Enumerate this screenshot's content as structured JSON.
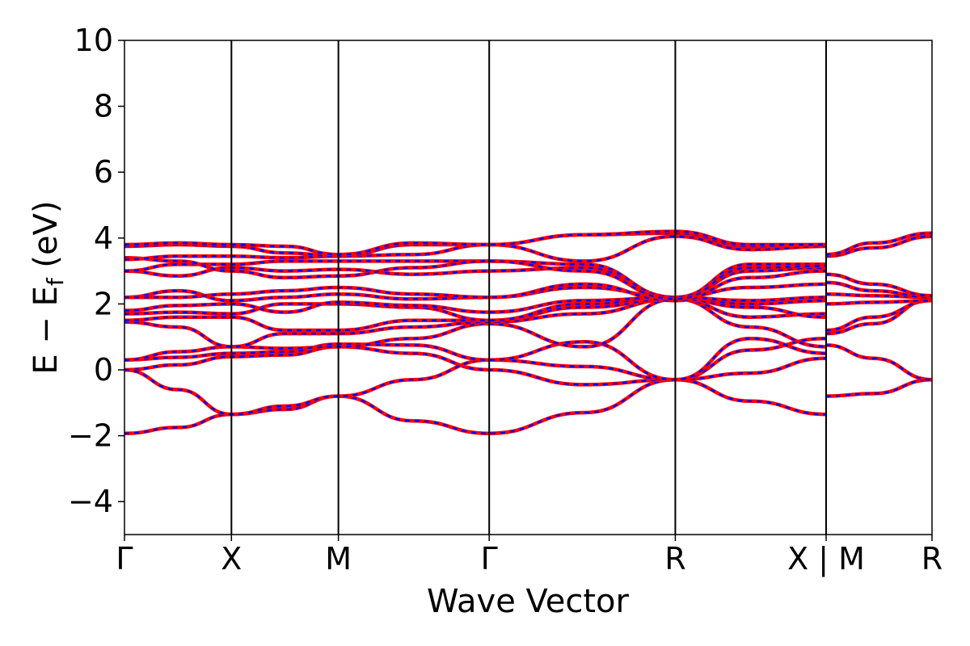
{
  "chart_data": {
    "type": "line",
    "xlabel": "Wave Vector",
    "ylabel": "E − E",
    "ylabel_sub": "f",
    "ylabel_unit": " (eV)",
    "ylim": [
      -5,
      10
    ],
    "yticks": [
      -4,
      -2,
      0,
      2,
      4,
      6,
      8,
      10
    ],
    "ytick_labels": [
      "−4",
      "−2",
      "0",
      "2",
      "4",
      "6",
      "8",
      "10"
    ],
    "xlim": [
      0,
      7.55
    ],
    "kpath": [
      {
        "label": "Γ",
        "x": 0.0
      },
      {
        "label": "X",
        "x": 1.0
      },
      {
        "label": "M",
        "x": 2.0
      },
      {
        "label": "Γ",
        "x": 3.41
      },
      {
        "label": "R",
        "x": 5.15
      },
      {
        "label": "X | M",
        "x": 6.56
      },
      {
        "label": "R",
        "x": 7.55
      }
    ],
    "grid": false,
    "line_colors": {
      "primary": "#ff0000",
      "dashed": "#0000ff"
    },
    "series": [
      {
        "values": [
          [
            0,
            -1.93
          ],
          [
            0.5,
            -1.75
          ],
          [
            1.0,
            -1.35
          ],
          [
            1.5,
            -1.2
          ],
          [
            2.0,
            -0.8
          ],
          [
            2.7,
            -1.55
          ],
          [
            3.41,
            -1.93
          ],
          [
            4.3,
            -1.3
          ],
          [
            5.15,
            -0.3
          ],
          [
            5.85,
            -0.95
          ],
          [
            6.56,
            -1.35
          ]
        ]
      },
      {
        "values": [
          [
            6.56,
            -0.8
          ],
          [
            7.0,
            -0.72
          ],
          [
            7.55,
            -0.3
          ]
        ]
      },
      {
        "values": [
          [
            0,
            0.0
          ],
          [
            0.5,
            0.15
          ],
          [
            1.0,
            0.4
          ],
          [
            1.5,
            0.45
          ],
          [
            2.0,
            0.7
          ],
          [
            2.7,
            0.5
          ],
          [
            3.41,
            0.0
          ],
          [
            4.3,
            -0.45
          ],
          [
            5.15,
            -0.3
          ],
          [
            5.85,
            -0.1
          ],
          [
            6.56,
            0.35
          ]
        ]
      },
      {
        "values": [
          [
            6.56,
            0.75
          ],
          [
            7.0,
            0.35
          ],
          [
            7.55,
            -0.3
          ]
        ]
      },
      {
        "values": [
          [
            0,
            0.0
          ],
          [
            0.5,
            -0.6
          ],
          [
            1.0,
            -1.35
          ],
          [
            1.5,
            -1.1
          ],
          [
            2.0,
            -0.8
          ],
          [
            2.7,
            -0.3
          ],
          [
            3.41,
            0.3
          ],
          [
            4.3,
            0.1
          ],
          [
            5.15,
            -0.3
          ],
          [
            5.85,
            0.6
          ],
          [
            6.56,
            0.95
          ]
        ]
      },
      {
        "values": [
          [
            0,
            0.3
          ],
          [
            0.5,
            0.38
          ],
          [
            1.0,
            0.5
          ],
          [
            1.5,
            0.55
          ],
          [
            2.0,
            0.78
          ],
          [
            2.7,
            0.75
          ],
          [
            3.41,
            0.3
          ],
          [
            4.3,
            0.85
          ],
          [
            5.15,
            -0.3
          ],
          [
            5.85,
            0.95
          ],
          [
            6.56,
            0.5
          ]
        ]
      },
      {
        "values": [
          [
            0,
            0.3
          ],
          [
            0.5,
            0.55
          ],
          [
            1.0,
            0.7
          ],
          [
            1.5,
            0.65
          ],
          [
            2.0,
            0.7
          ],
          [
            2.7,
            0.95
          ],
          [
            3.41,
            1.4
          ],
          [
            4.3,
            0.7
          ],
          [
            5.15,
            2.15
          ],
          [
            5.85,
            1.3
          ],
          [
            6.56,
            0.7
          ]
        ]
      },
      {
        "values": [
          [
            6.56,
            1.1
          ],
          [
            7.0,
            1.4
          ],
          [
            7.55,
            2.15
          ]
        ]
      },
      {
        "values": [
          [
            0,
            1.45
          ],
          [
            0.5,
            1.3
          ],
          [
            1.0,
            0.7
          ],
          [
            1.5,
            1.1
          ],
          [
            2.0,
            1.1
          ],
          [
            2.7,
            1.3
          ],
          [
            3.41,
            1.45
          ],
          [
            4.3,
            1.7
          ],
          [
            5.15,
            2.15
          ],
          [
            5.85,
            1.6
          ],
          [
            6.56,
            1.7
          ]
        ]
      },
      {
        "values": [
          [
            6.56,
            1.2
          ],
          [
            7.0,
            1.6
          ],
          [
            7.55,
            2.1
          ]
        ]
      },
      {
        "values": [
          [
            0,
            1.5
          ],
          [
            0.5,
            1.6
          ],
          [
            1.0,
            1.6
          ],
          [
            1.5,
            1.2
          ],
          [
            2.0,
            1.2
          ],
          [
            2.7,
            1.5
          ],
          [
            3.41,
            1.5
          ],
          [
            4.3,
            1.9
          ],
          [
            5.15,
            2.15
          ],
          [
            5.85,
            1.9
          ],
          [
            6.56,
            1.6
          ]
        ]
      },
      {
        "values": [
          [
            0,
            1.7
          ],
          [
            0.5,
            1.75
          ],
          [
            1.0,
            1.7
          ],
          [
            1.5,
            2.0
          ],
          [
            2.0,
            2.0
          ],
          [
            2.7,
            1.9
          ],
          [
            3.41,
            1.5
          ],
          [
            4.3,
            2.0
          ],
          [
            5.15,
            2.2
          ],
          [
            5.85,
            2.0
          ],
          [
            6.56,
            2.1
          ]
        ]
      },
      {
        "values": [
          [
            6.56,
            2.0
          ],
          [
            7.0,
            2.05
          ],
          [
            7.55,
            2.1
          ]
        ]
      },
      {
        "values": [
          [
            0,
            1.8
          ],
          [
            0.5,
            1.95
          ],
          [
            1.0,
            2.0
          ],
          [
            1.5,
            1.75
          ],
          [
            2.0,
            2.05
          ],
          [
            2.7,
            1.95
          ],
          [
            3.41,
            1.75
          ],
          [
            4.3,
            2.1
          ],
          [
            5.15,
            2.2
          ],
          [
            5.85,
            2.1
          ],
          [
            6.56,
            2.2
          ]
        ]
      },
      {
        "values": [
          [
            0,
            2.2
          ],
          [
            0.5,
            2.4
          ],
          [
            1.0,
            2.1
          ],
          [
            1.5,
            2.2
          ],
          [
            2.0,
            2.3
          ],
          [
            2.7,
            2.15
          ],
          [
            3.41,
            2.2
          ],
          [
            4.3,
            2.5
          ],
          [
            5.15,
            2.2
          ],
          [
            5.85,
            2.5
          ],
          [
            6.56,
            2.6
          ]
        ]
      },
      {
        "values": [
          [
            6.56,
            2.3
          ],
          [
            7.0,
            2.25
          ],
          [
            7.55,
            2.2
          ]
        ]
      },
      {
        "values": [
          [
            0,
            2.2
          ],
          [
            0.5,
            2.2
          ],
          [
            1.0,
            2.3
          ],
          [
            1.5,
            2.4
          ],
          [
            2.0,
            2.5
          ],
          [
            2.7,
            2.3
          ],
          [
            3.41,
            2.2
          ],
          [
            4.3,
            2.6
          ],
          [
            5.15,
            2.1
          ],
          [
            5.85,
            2.8
          ],
          [
            6.56,
            3.0
          ]
        ]
      },
      {
        "values": [
          [
            6.56,
            2.65
          ],
          [
            7.0,
            2.4
          ],
          [
            7.55,
            2.2
          ]
        ]
      },
      {
        "values": [
          [
            0,
            3.0
          ],
          [
            0.5,
            2.85
          ],
          [
            1.0,
            3.1
          ],
          [
            1.5,
            3.0
          ],
          [
            2.0,
            3.05
          ],
          [
            2.7,
            2.9
          ],
          [
            3.41,
            3.0
          ],
          [
            4.3,
            3.1
          ],
          [
            5.15,
            2.15
          ],
          [
            5.85,
            3.0
          ],
          [
            6.56,
            3.1
          ]
        ]
      },
      {
        "values": [
          [
            6.56,
            2.9
          ],
          [
            7.0,
            2.6
          ],
          [
            7.55,
            2.25
          ]
        ]
      },
      {
        "values": [
          [
            0,
            3.0
          ],
          [
            0.5,
            3.2
          ],
          [
            1.0,
            3.2
          ],
          [
            1.5,
            3.3
          ],
          [
            2.0,
            3.3
          ],
          [
            2.7,
            3.3
          ],
          [
            3.41,
            3.3
          ],
          [
            4.3,
            3.2
          ],
          [
            5.15,
            2.2
          ],
          [
            5.85,
            3.2
          ],
          [
            6.56,
            3.2
          ]
        ]
      },
      {
        "values": [
          [
            0,
            3.4
          ],
          [
            0.5,
            3.3
          ],
          [
            1.0,
            3.0
          ],
          [
            1.5,
            2.8
          ],
          [
            2.0,
            2.85
          ],
          [
            2.7,
            3.1
          ],
          [
            3.41,
            3.3
          ],
          [
            4.3,
            3.0
          ],
          [
            5.15,
            2.15
          ],
          [
            5.85,
            3.1
          ],
          [
            6.56,
            3.15
          ]
        ]
      },
      {
        "values": [
          [
            0,
            3.35
          ],
          [
            0.5,
            3.45
          ],
          [
            1.0,
            3.45
          ],
          [
            1.5,
            3.4
          ],
          [
            2.0,
            3.45
          ],
          [
            2.7,
            3.5
          ],
          [
            3.41,
            3.8
          ],
          [
            4.3,
            3.3
          ],
          [
            5.15,
            4.05
          ],
          [
            5.85,
            3.65
          ],
          [
            6.56,
            3.75
          ]
        ]
      },
      {
        "values": [
          [
            6.56,
            3.45
          ],
          [
            7.0,
            3.7
          ],
          [
            7.55,
            4.05
          ]
        ]
      },
      {
        "values": [
          [
            0,
            3.75
          ],
          [
            0.5,
            3.8
          ],
          [
            1.0,
            3.75
          ],
          [
            1.5,
            3.55
          ],
          [
            2.0,
            3.45
          ],
          [
            2.7,
            3.8
          ],
          [
            3.41,
            3.8
          ],
          [
            4.3,
            4.1
          ],
          [
            5.15,
            4.15
          ],
          [
            5.85,
            3.75
          ],
          [
            6.56,
            3.8
          ]
        ]
      },
      {
        "values": [
          [
            6.56,
            3.5
          ],
          [
            7.0,
            3.85
          ],
          [
            7.55,
            4.15
          ]
        ]
      },
      {
        "values": [
          [
            0,
            3.8
          ],
          [
            0.5,
            3.85
          ],
          [
            1.0,
            3.8
          ],
          [
            1.5,
            3.75
          ],
          [
            2.0,
            3.5
          ],
          [
            2.7,
            3.85
          ],
          [
            3.41,
            3.8
          ],
          [
            4.3,
            4.1
          ],
          [
            5.15,
            4.2
          ],
          [
            5.85,
            3.8
          ],
          [
            6.56,
            3.8
          ]
        ]
      }
    ]
  }
}
